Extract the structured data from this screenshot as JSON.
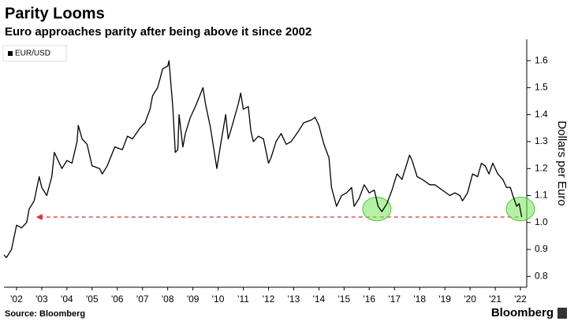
{
  "chart_data": {
    "type": "line",
    "title": "Parity Looms",
    "subtitle": "Euro approaches parity after being above it since 2002",
    "y_axis_label": "Dollars per Euro",
    "source": "Source: Bloomberg",
    "brand": "Bloomberg",
    "grid": false,
    "legend": "upper left",
    "x": [
      2002.0,
      2002.1,
      2002.3,
      2002.5,
      2002.7,
      2002.9,
      2003.0,
      2003.2,
      2003.4,
      2003.5,
      2003.7,
      2003.9,
      2004.0,
      2004.1,
      2004.3,
      2004.5,
      2004.7,
      2004.9,
      2004.95,
      2005.1,
      2005.3,
      2005.5,
      2005.8,
      2005.9,
      2006.1,
      2006.4,
      2006.7,
      2006.9,
      2007.1,
      2007.4,
      2007.6,
      2007.8,
      2007.9,
      2008.1,
      2008.3,
      2008.5,
      2008.55,
      2008.7,
      2008.8,
      2008.9,
      2008.95,
      2009.1,
      2009.2,
      2009.4,
      2009.6,
      2009.9,
      2010.0,
      2010.2,
      2010.4,
      2010.45,
      2010.6,
      2010.8,
      2010.9,
      2011.0,
      2011.3,
      2011.4,
      2011.5,
      2011.7,
      2011.8,
      2011.9,
      2012.1,
      2012.3,
      2012.5,
      2012.6,
      2012.8,
      2013.0,
      2013.2,
      2013.4,
      2013.7,
      2013.9,
      2014.2,
      2014.35,
      2014.5,
      2014.7,
      2014.9,
      2015.0,
      2015.2,
      2015.4,
      2015.6,
      2015.8,
      2015.9,
      2016.1,
      2016.3,
      2016.5,
      2016.7,
      2016.85,
      2017.0,
      2017.2,
      2017.4,
      2017.6,
      2017.8,
      2017.9,
      2018.1,
      2018.2,
      2018.4,
      2018.6,
      2018.9,
      2019.1,
      2019.4,
      2019.7,
      2019.9,
      2020.1,
      2020.2,
      2020.4,
      2020.6,
      2020.8,
      2020.95,
      2021.1,
      2021.25,
      2021.4,
      2021.6,
      2021.8,
      2021.95,
      2022.1,
      2022.2,
      2022.35,
      2022.45,
      2022.55
    ],
    "series": [
      {
        "name": "EUR/USD",
        "color": "#000000",
        "values": [
          0.88,
          0.87,
          0.9,
          0.99,
          0.98,
          1.0,
          1.05,
          1.08,
          1.17,
          1.13,
          1.1,
          1.17,
          1.26,
          1.24,
          1.2,
          1.23,
          1.22,
          1.3,
          1.36,
          1.31,
          1.29,
          1.21,
          1.2,
          1.18,
          1.21,
          1.28,
          1.27,
          1.32,
          1.31,
          1.35,
          1.37,
          1.42,
          1.47,
          1.5,
          1.57,
          1.58,
          1.6,
          1.43,
          1.26,
          1.27,
          1.4,
          1.28,
          1.33,
          1.39,
          1.43,
          1.5,
          1.44,
          1.35,
          1.23,
          1.2,
          1.29,
          1.4,
          1.31,
          1.34,
          1.44,
          1.48,
          1.42,
          1.43,
          1.34,
          1.3,
          1.32,
          1.31,
          1.22,
          1.24,
          1.3,
          1.33,
          1.29,
          1.3,
          1.34,
          1.37,
          1.38,
          1.39,
          1.36,
          1.29,
          1.24,
          1.13,
          1.06,
          1.1,
          1.11,
          1.13,
          1.06,
          1.09,
          1.14,
          1.11,
          1.12,
          1.06,
          1.04,
          1.07,
          1.12,
          1.18,
          1.16,
          1.19,
          1.25,
          1.23,
          1.17,
          1.16,
          1.14,
          1.14,
          1.12,
          1.1,
          1.11,
          1.1,
          1.08,
          1.11,
          1.18,
          1.17,
          1.22,
          1.21,
          1.18,
          1.22,
          1.18,
          1.16,
          1.13,
          1.13,
          1.1,
          1.06,
          1.07,
          1.02
        ]
      }
    ],
    "reference_value": 1.02,
    "reference_x": [
      2003.4,
      2022.5
    ],
    "highlights": [
      {
        "x": 2016.8,
        "y": 1.05
      },
      {
        "x": 2022.5,
        "y": 1.05
      }
    ],
    "xlim": [
      2002,
      2022.75
    ],
    "xticks": [
      {
        "value": 2002.5,
        "label": "'02"
      },
      {
        "value": 2003.5,
        "label": "'03"
      },
      {
        "value": 2004.5,
        "label": "'04"
      },
      {
        "value": 2005.5,
        "label": "'05"
      },
      {
        "value": 2006.5,
        "label": "'06"
      },
      {
        "value": 2007.5,
        "label": "'07"
      },
      {
        "value": 2008.5,
        "label": "'08"
      },
      {
        "value": 2009.5,
        "label": "'09"
      },
      {
        "value": 2010.5,
        "label": "'10"
      },
      {
        "value": 2011.5,
        "label": "'11"
      },
      {
        "value": 2012.5,
        "label": "'12"
      },
      {
        "value": 2013.5,
        "label": "'13"
      },
      {
        "value": 2014.5,
        "label": "'14"
      },
      {
        "value": 2015.5,
        "label": "'15"
      },
      {
        "value": 2016.5,
        "label": "'16"
      },
      {
        "value": 2017.5,
        "label": "'17"
      },
      {
        "value": 2018.5,
        "label": "'18"
      },
      {
        "value": 2019.5,
        "label": "'19"
      },
      {
        "value": 2020.5,
        "label": "'20"
      },
      {
        "value": 2021.5,
        "label": "'21"
      },
      {
        "value": 2022.5,
        "label": "'22"
      }
    ],
    "ylim": [
      0.76,
      1.65
    ],
    "yticks": [
      0.8,
      0.9,
      {
        "value": 1,
        "label": "1.0"
      },
      1.1,
      1.2,
      1.3,
      1.4,
      1.5,
      1.6
    ]
  }
}
